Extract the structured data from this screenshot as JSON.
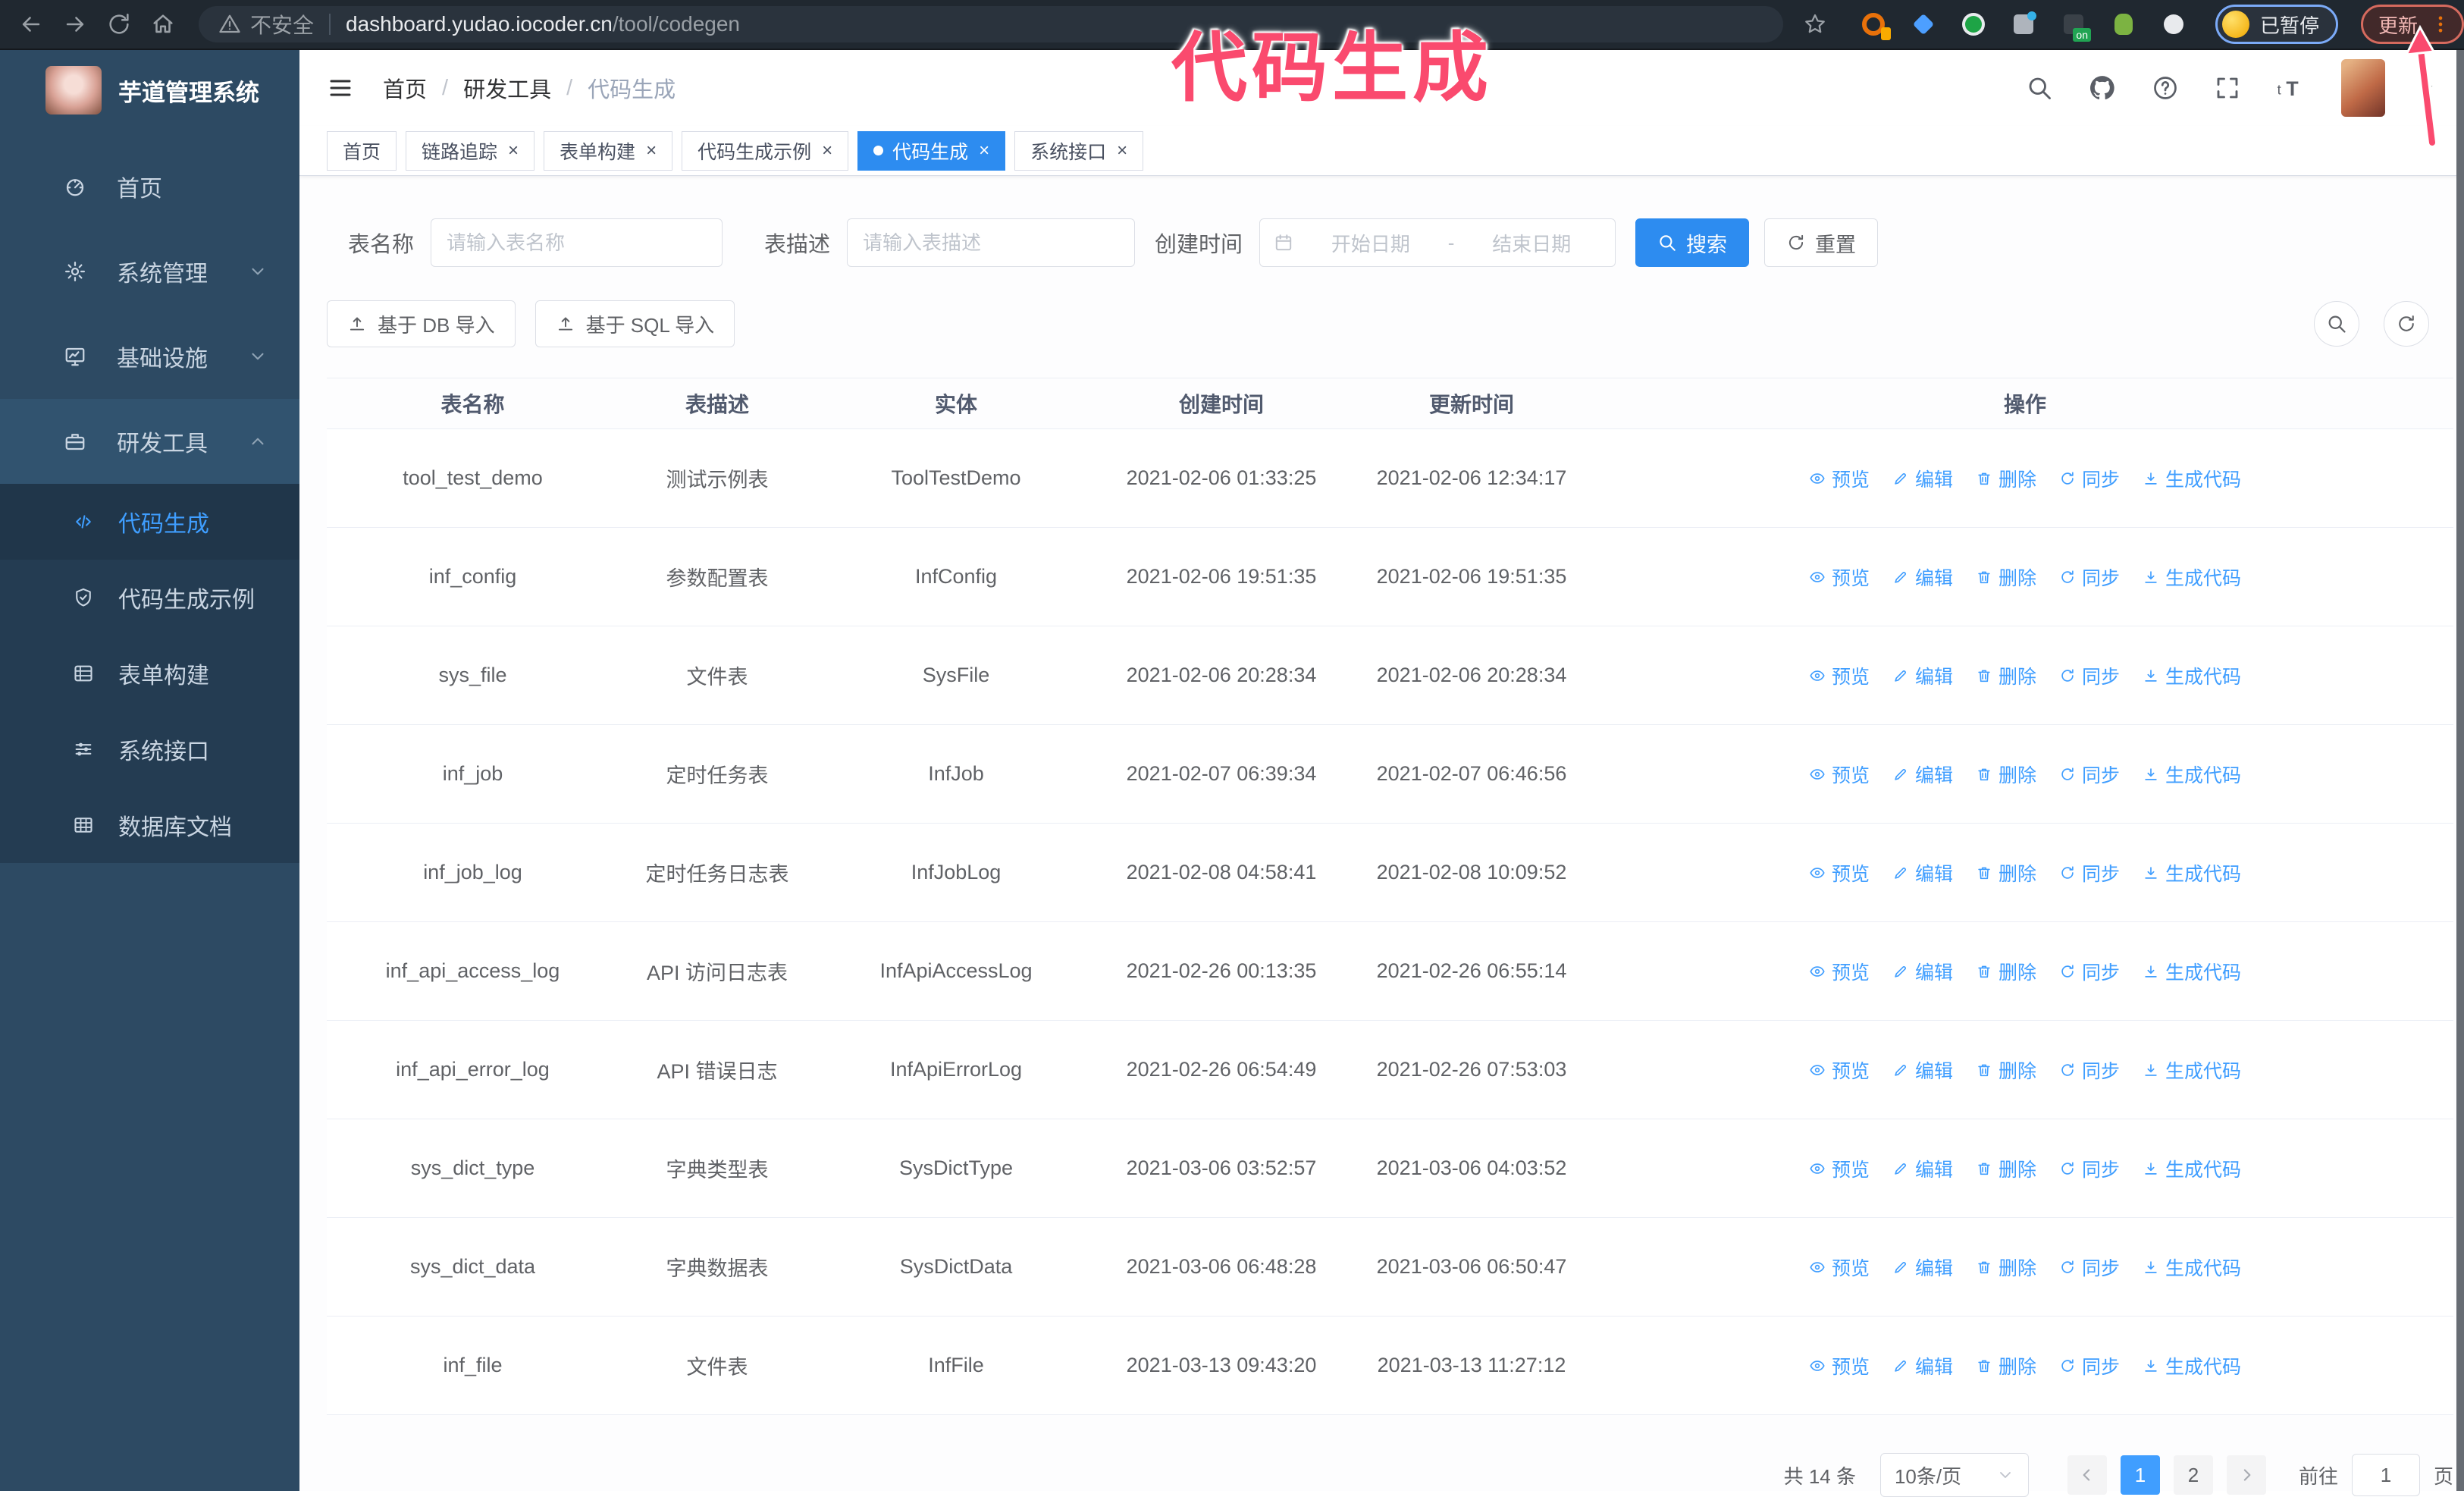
{
  "colors": {
    "accent": "#409EFF",
    "tab_active_blue": "#2d8cf0",
    "sidebar_bg": "#2d4a63",
    "submenu_bg": "#243c52",
    "browser_bar_bg": "#202830",
    "annotation_pink": "#fa4a6e"
  },
  "annotation": {
    "title": "代码生成"
  },
  "browser": {
    "security_label": "不安全",
    "url_host": "dashboard.yudao.iocoder.cn",
    "url_path": "/tool/codegen",
    "paused_label": "已暂停",
    "update_label": "更新",
    "extensions": [
      "orange-ring-extension",
      "blue-gem-extension",
      "green-check-extension",
      "grid-extension",
      "dark-on-extension",
      "green-figure-extension",
      "puzzle-extension"
    ]
  },
  "sidebar": {
    "app_title": "芋道管理系统",
    "items": [
      {
        "label": "首页",
        "icon": "dashboard-icon",
        "chevron": null,
        "expanded": false
      },
      {
        "label": "系统管理",
        "icon": "gear-icon",
        "chevron": "down",
        "expanded": false
      },
      {
        "label": "基础设施",
        "icon": "monitor-icon",
        "chevron": "down",
        "expanded": false
      },
      {
        "label": "研发工具",
        "icon": "toolbox-icon",
        "chevron": "up",
        "expanded": true
      }
    ],
    "sub_items": [
      {
        "label": "代码生成",
        "icon": "code-icon",
        "active": true
      },
      {
        "label": "代码生成示例",
        "icon": "shield-check-icon",
        "active": false
      },
      {
        "label": "表单构建",
        "icon": "form-icon",
        "active": false
      },
      {
        "label": "系统接口",
        "icon": "sliders-icon",
        "active": false
      },
      {
        "label": "数据库文档",
        "icon": "database-icon",
        "active": false
      }
    ]
  },
  "breadcrumb": [
    "首页",
    "研发工具",
    "代码生成"
  ],
  "tabs": [
    {
      "label": "首页",
      "closable": false,
      "active": false
    },
    {
      "label": "链路追踪",
      "closable": true,
      "active": false
    },
    {
      "label": "表单构建",
      "closable": true,
      "active": false
    },
    {
      "label": "代码生成示例",
      "closable": true,
      "active": false
    },
    {
      "label": "代码生成",
      "closable": true,
      "active": true
    },
    {
      "label": "系统接口",
      "closable": true,
      "active": false
    }
  ],
  "filters": {
    "name_label": "表名称",
    "name_placeholder": "请输入表名称",
    "desc_label": "表描述",
    "desc_placeholder": "请输入表描述",
    "time_label": "创建时间",
    "start_placeholder": "开始日期",
    "range_separator": "-",
    "end_placeholder": "结束日期",
    "search_label": "搜索",
    "reset_label": "重置"
  },
  "import_buttons": {
    "db": "基于 DB 导入",
    "sql": "基于 SQL 导入"
  },
  "table": {
    "columns": [
      "表名称",
      "表描述",
      "实体",
      "创建时间",
      "更新时间",
      "操作"
    ],
    "actions": [
      {
        "label": "预览",
        "icon": "eye-icon"
      },
      {
        "label": "编辑",
        "icon": "edit-icon"
      },
      {
        "label": "删除",
        "icon": "delete-icon"
      },
      {
        "label": "同步",
        "icon": "sync-icon"
      },
      {
        "label": "生成代码",
        "icon": "download-icon"
      }
    ],
    "rows": [
      {
        "name": "tool_test_demo",
        "desc": "测试示例表",
        "entity": "ToolTestDemo",
        "created": "2021-02-06 01:33:25",
        "updated": "2021-02-06 12:34:17"
      },
      {
        "name": "inf_config",
        "desc": "参数配置表",
        "entity": "InfConfig",
        "created": "2021-02-06 19:51:35",
        "updated": "2021-02-06 19:51:35"
      },
      {
        "name": "sys_file",
        "desc": "文件表",
        "entity": "SysFile",
        "created": "2021-02-06 20:28:34",
        "updated": "2021-02-06 20:28:34"
      },
      {
        "name": "inf_job",
        "desc": "定时任务表",
        "entity": "InfJob",
        "created": "2021-02-07 06:39:34",
        "updated": "2021-02-07 06:46:56"
      },
      {
        "name": "inf_job_log",
        "desc": "定时任务日志表",
        "entity": "InfJobLog",
        "created": "2021-02-08 04:58:41",
        "updated": "2021-02-08 10:09:52"
      },
      {
        "name": "inf_api_access_log",
        "desc": "API 访问日志表",
        "entity": "InfApiAccessLog",
        "created": "2021-02-26 00:13:35",
        "updated": "2021-02-26 06:55:14"
      },
      {
        "name": "inf_api_error_log",
        "desc": "API 错误日志",
        "entity": "InfApiErrorLog",
        "created": "2021-02-26 06:54:49",
        "updated": "2021-02-26 07:53:03"
      },
      {
        "name": "sys_dict_type",
        "desc": "字典类型表",
        "entity": "SysDictType",
        "created": "2021-03-06 03:52:57",
        "updated": "2021-03-06 04:03:52"
      },
      {
        "name": "sys_dict_data",
        "desc": "字典数据表",
        "entity": "SysDictData",
        "created": "2021-03-06 06:48:28",
        "updated": "2021-03-06 06:50:47"
      },
      {
        "name": "inf_file",
        "desc": "文件表",
        "entity": "InfFile",
        "created": "2021-03-13 09:43:20",
        "updated": "2021-03-13 11:27:12"
      }
    ]
  },
  "pagination": {
    "total": "共 14 条",
    "page_size": "10条/页",
    "pages": [
      "1",
      "2"
    ],
    "active_page": "1",
    "goto_label": "前往",
    "goto_value": "1",
    "page_unit": "页"
  }
}
